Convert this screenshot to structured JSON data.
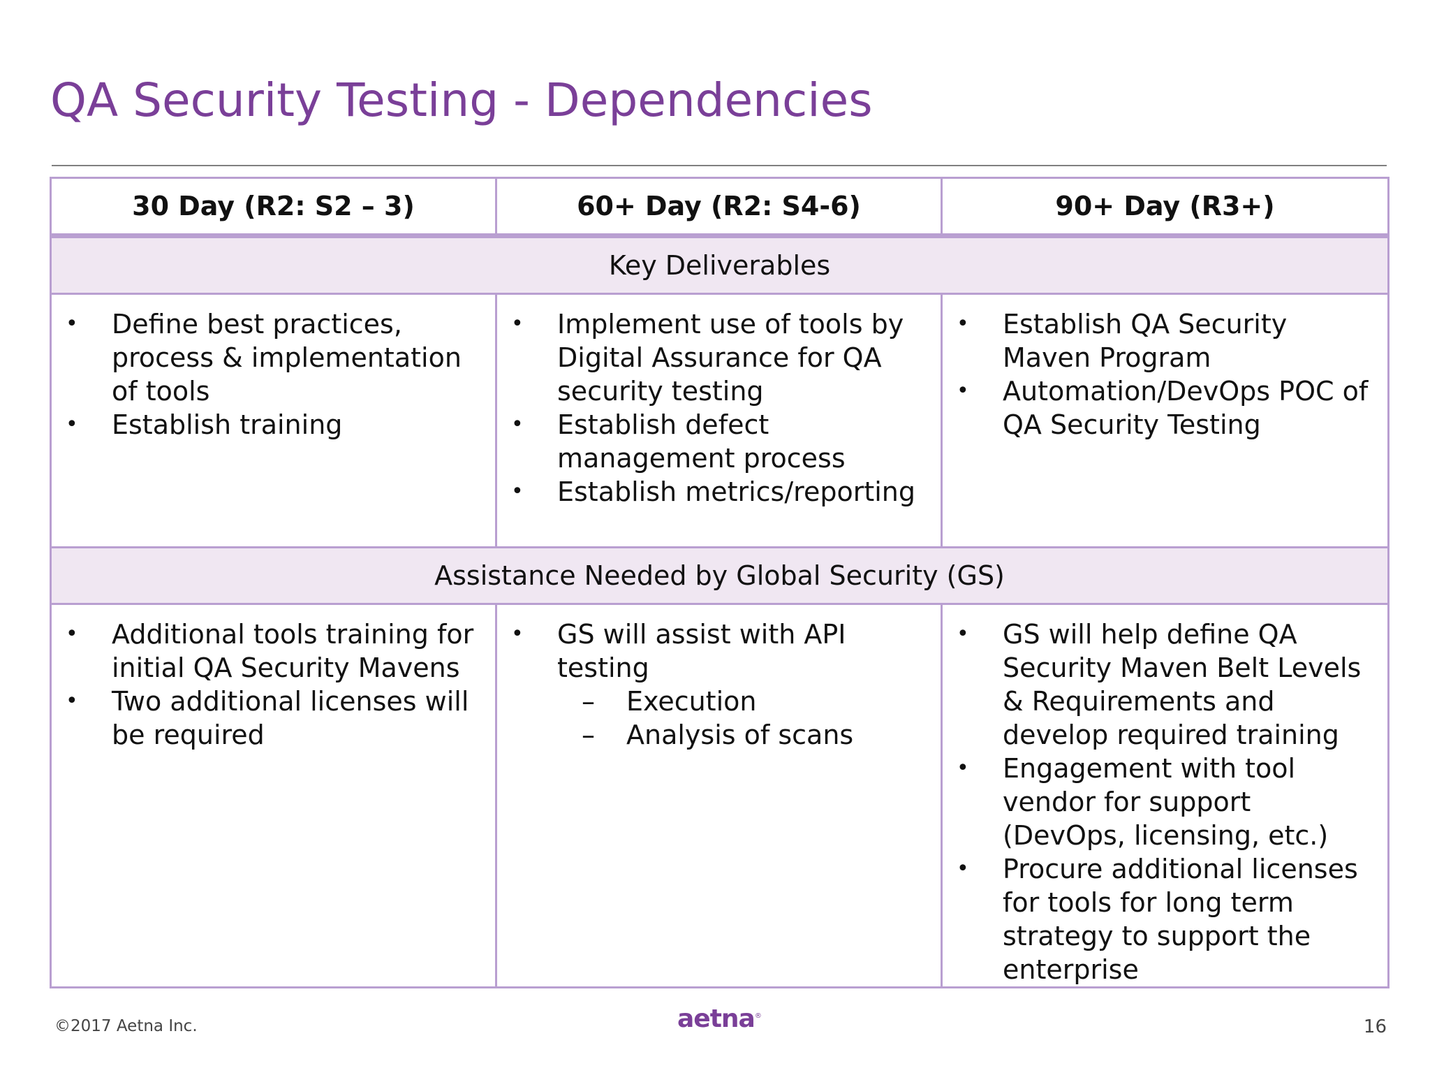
{
  "title": "QA Security Testing - Dependencies",
  "columns": [
    "30 Day (R2: S2 – 3)",
    "60+ Day (R2: S4-6)",
    "90+ Day (R3+)"
  ],
  "sections": {
    "key_deliverables": {
      "label": "Key Deliverables",
      "col1": [
        "Define best practices, process & implementation of tools",
        "Establish training"
      ],
      "col2": [
        "Implement use of tools by Digital Assurance for QA security testing",
        "Establish defect management process",
        "Establish metrics/reporting"
      ],
      "col3": [
        "Establish QA Security Maven Program",
        "Automation/DevOps POC of QA Security Testing"
      ]
    },
    "assistance": {
      "label": "Assistance Needed by Global Security (GS)",
      "col1": [
        "Additional tools training for initial QA Security Mavens",
        "Two additional licenses will be required"
      ],
      "col2": [
        "GS will assist with API testing"
      ],
      "col2_sub": [
        "Execution",
        "Analysis of scans"
      ],
      "col3": [
        "GS will help define QA Security Maven Belt Levels & Requirements and develop required training",
        "Engagement with tool vendor for support (DevOps, licensing, etc.)",
        "Procure additional licenses for tools for long term strategy to support the  enterprise"
      ]
    }
  },
  "footer": {
    "copyright": "©2017 Aetna Inc.",
    "logo": "aetna",
    "page_number": "16"
  },
  "colors": {
    "accent": "#7a3f98",
    "border": "#b99fd1",
    "band": "#f0e7f2"
  }
}
